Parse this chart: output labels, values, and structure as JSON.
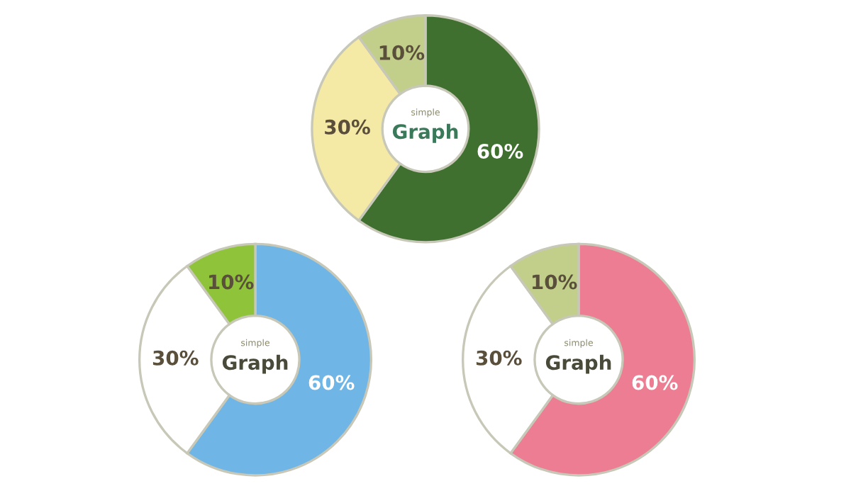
{
  "chart_data": [
    {
      "type": "donut",
      "categories": [
        null,
        null,
        null
      ],
      "values": [
        60,
        30,
        10
      ],
      "colors": [
        "#3f7030",
        "#f5e9a6",
        "#c2cf8a"
      ],
      "value_labels": [
        "60%",
        "30%",
        "10%"
      ],
      "annotations": [
        "simple",
        "Graph"
      ]
    },
    {
      "type": "donut",
      "categories": [
        null,
        null,
        null
      ],
      "values": [
        60,
        30,
        10
      ],
      "colors": [
        "#6fb5e6",
        "#ffffff",
        "#8fc43a"
      ],
      "value_labels": [
        "60%",
        "30%",
        "10%"
      ],
      "annotations": [
        "simple",
        "Graph"
      ]
    },
    {
      "type": "donut",
      "categories": [
        null,
        null,
        null
      ],
      "values": [
        60,
        30,
        10
      ],
      "colors": [
        "#ec7d92",
        "#ffffff",
        "#c2cf8a"
      ],
      "value_labels": [
        "60%",
        "30%",
        "10%"
      ],
      "annotations": [
        "simple",
        "Graph"
      ]
    }
  ]
}
